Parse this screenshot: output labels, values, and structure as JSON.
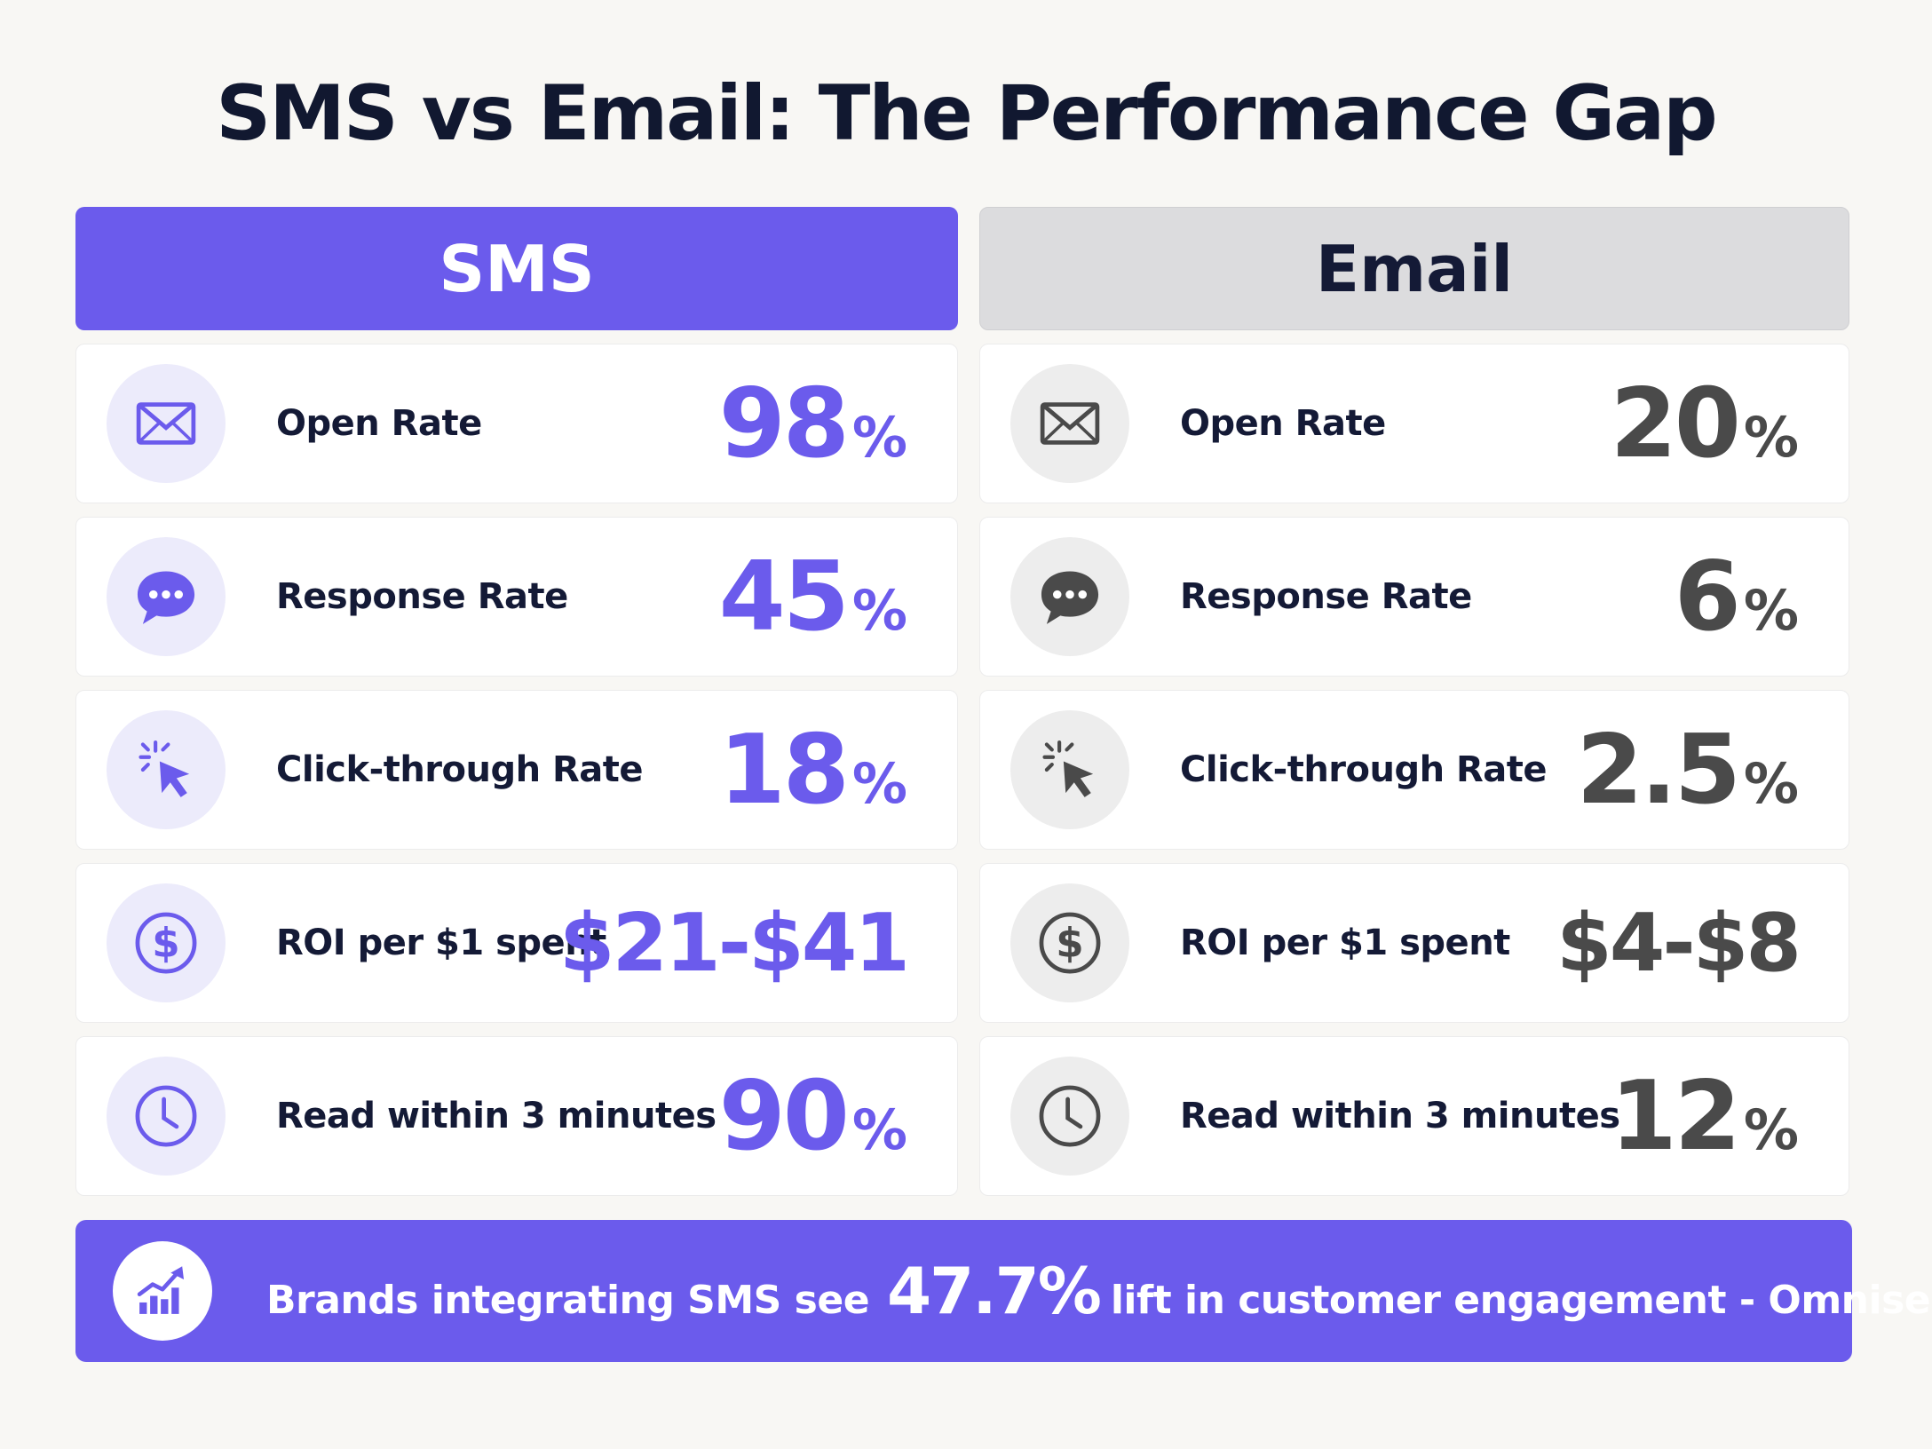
{
  "title": "SMS vs Email: The Performance Gap",
  "columns": [
    {
      "header": "SMS",
      "rows": [
        {
          "label": "Open Rate",
          "value": "98",
          "unit": "%"
        },
        {
          "label": "Response Rate",
          "value": "45",
          "unit": "%"
        },
        {
          "label": "Click-through Rate",
          "value": "18",
          "unit": "%"
        },
        {
          "label": "ROI per $1 spent",
          "value": "$21-$41"
        },
        {
          "label": "Read within 3 minutes",
          "value": "90",
          "unit": "%"
        }
      ]
    },
    {
      "header": "Email",
      "rows": [
        {
          "label": "Open Rate",
          "value": "20",
          "unit": "%"
        },
        {
          "label": "Response Rate",
          "value": "6",
          "unit": "%"
        },
        {
          "label": "Click-through Rate",
          "value": "2.5",
          "unit": "%"
        },
        {
          "label": "ROI per $1 spent",
          "value": "$4-$8"
        },
        {
          "label": "Read within 3 minutes",
          "value": "12",
          "unit": "%"
        }
      ]
    }
  ],
  "footer": {
    "prefix": "Brands integrating SMS see",
    "highlight": "47.7%",
    "suffix": "lift in customer engagement - Omnisend"
  }
}
